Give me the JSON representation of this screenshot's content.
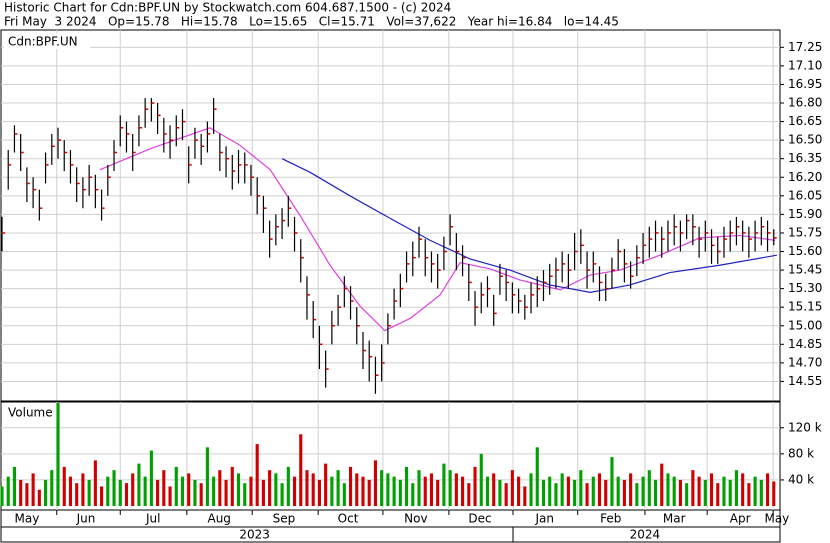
{
  "header": {
    "title": "Historic Chart for Cdn:BPF.UN by Stockwatch.com 604.687.1500 - (c) 2024",
    "summary": "Fri May  3 2024   Op=15.78   Hi=15.78   Lo=15.65   Cl=15.71   Vol=37,622   Year hi=16.84   lo=14.45"
  },
  "chart_data": {
    "type": "ohlc",
    "title": "Cdn:BPF.UN",
    "volume_title": "Volume",
    "xlim": [
      0,
      125
    ],
    "xticks": [
      {
        "value": 4.0,
        "label": "May"
      },
      {
        "value": 13.5,
        "label": "Jun"
      },
      {
        "value": 24.3,
        "label": "Jul"
      },
      {
        "value": 34.9,
        "label": "Aug"
      },
      {
        "value": 45.3,
        "label": "Sep"
      },
      {
        "value": 55.6,
        "label": "Oct"
      },
      {
        "value": 66.5,
        "label": "Nov"
      },
      {
        "value": 76.8,
        "label": "Dec"
      },
      {
        "value": 87.2,
        "label": "Jan"
      },
      {
        "value": 97.8,
        "label": "Feb"
      },
      {
        "value": 108.0,
        "label": "Mar"
      },
      {
        "value": 118.6,
        "label": "Apr"
      },
      {
        "value": 124.5,
        "label": "May"
      }
    ],
    "xgrid": [
      8.8,
      19.0,
      29.7,
      40.2,
      50.8,
      61.2,
      71.8,
      82.1,
      92.5,
      103.3,
      113.3,
      123.9
    ],
    "years": [
      {
        "value": 40.6,
        "label": "2023"
      },
      {
        "value": 103.3,
        "label": "2024"
      }
    ],
    "year_divider": 82.1,
    "ylim": [
      14.4,
      17.39
    ],
    "yticks": [
      17.25,
      {
        "value": 17.1,
        "label": "17.10"
      },
      16.95,
      {
        "value": 16.8,
        "label": "16.80"
      },
      16.65,
      {
        "value": 16.5,
        "label": "16.50"
      },
      16.35,
      {
        "value": 16.2,
        "label": "16.20"
      },
      16.05,
      {
        "value": 15.9,
        "label": "15.90"
      },
      15.75,
      {
        "value": 15.6,
        "label": "15.60"
      },
      15.45,
      {
        "value": 15.3,
        "label": "15.30"
      },
      15.15,
      {
        "value": 15.0,
        "label": "15.00"
      },
      14.85,
      {
        "value": 14.7,
        "label": "14.70"
      },
      14.55
    ],
    "high": [
      15.88,
      16.42,
      16.62,
      16.55,
      16.28,
      16.2,
      16.1,
      16.4,
      16.55,
      16.6,
      16.5,
      16.42,
      16.28,
      16.2,
      16.3,
      16.22,
      16.1,
      16.3,
      16.5,
      16.7,
      16.65,
      16.55,
      16.7,
      16.84,
      16.84,
      16.8,
      16.68,
      16.62,
      16.7,
      16.75,
      16.45,
      16.6,
      16.55,
      16.65,
      16.84,
      16.55,
      16.45,
      16.38,
      16.42,
      16.4,
      16.3,
      16.2,
      16.05,
      15.85,
      15.9,
      15.95,
      16.05,
      15.88,
      15.7,
      15.4,
      15.2,
      15.0,
      14.8,
      15.12,
      15.25,
      15.4,
      15.32,
      15.15,
      14.95,
      14.88,
      14.75,
      14.85,
      15.1,
      15.3,
      15.42,
      15.6,
      15.68,
      15.8,
      15.7,
      15.6,
      15.58,
      15.72,
      15.9,
      15.75,
      15.65,
      15.5,
      15.28,
      15.35,
      15.4,
      15.25,
      15.5,
      15.45,
      15.35,
      15.3,
      15.25,
      15.35,
      15.4,
      15.45,
      15.5,
      15.55,
      15.6,
      15.58,
      15.75,
      15.78,
      15.6,
      15.6,
      15.48,
      15.42,
      15.55,
      15.7,
      15.62,
      15.52,
      15.65,
      15.75,
      15.8,
      15.85,
      15.8,
      15.85,
      15.9,
      15.85,
      15.9,
      15.9,
      15.8,
      15.85,
      15.78,
      15.72,
      15.8,
      15.85,
      15.88,
      15.85,
      15.8,
      15.85,
      15.88,
      15.85,
      15.78
    ],
    "low": [
      15.6,
      16.1,
      16.4,
      16.25,
      16.0,
      15.95,
      15.85,
      16.15,
      16.3,
      16.35,
      16.25,
      16.15,
      16.0,
      15.95,
      16.05,
      15.95,
      15.85,
      16.05,
      16.25,
      16.45,
      16.4,
      16.25,
      16.45,
      16.6,
      16.65,
      16.55,
      16.4,
      16.35,
      16.45,
      16.5,
      16.15,
      16.35,
      16.3,
      16.4,
      16.55,
      16.25,
      16.2,
      16.1,
      16.15,
      16.15,
      16.05,
      15.9,
      15.75,
      15.55,
      15.65,
      15.7,
      15.8,
      15.6,
      15.35,
      15.05,
      14.9,
      14.65,
      14.5,
      14.85,
      15.0,
      15.15,
      15.05,
      14.85,
      14.65,
      14.55,
      14.45,
      14.55,
      14.85,
      15.05,
      15.15,
      15.35,
      15.4,
      15.55,
      15.4,
      15.35,
      15.3,
      15.45,
      15.65,
      15.45,
      15.4,
      15.2,
      15.0,
      15.1,
      15.15,
      15.0,
      15.25,
      15.2,
      15.1,
      15.1,
      15.05,
      15.1,
      15.15,
      15.2,
      15.25,
      15.3,
      15.35,
      15.3,
      15.45,
      15.5,
      15.3,
      15.35,
      15.2,
      15.2,
      15.3,
      15.45,
      15.35,
      15.3,
      15.4,
      15.5,
      15.55,
      15.6,
      15.55,
      15.6,
      15.65,
      15.6,
      15.7,
      15.65,
      15.55,
      15.6,
      15.5,
      15.5,
      15.55,
      15.6,
      15.65,
      15.6,
      15.55,
      15.6,
      15.65,
      15.6,
      15.65
    ],
    "close": [
      15.75,
      16.3,
      16.55,
      16.4,
      16.15,
      16.1,
      15.95,
      16.3,
      16.45,
      16.5,
      16.4,
      16.3,
      16.15,
      16.1,
      16.2,
      16.1,
      15.95,
      16.2,
      16.4,
      16.6,
      16.55,
      16.4,
      16.6,
      16.75,
      16.8,
      16.7,
      16.55,
      16.5,
      16.6,
      16.65,
      16.3,
      16.5,
      16.45,
      16.55,
      16.75,
      16.4,
      16.35,
      16.25,
      16.3,
      16.3,
      16.2,
      16.05,
      15.95,
      15.7,
      15.8,
      15.85,
      15.95,
      15.75,
      15.55,
      15.25,
      15.05,
      14.85,
      14.65,
      15.0,
      15.15,
      15.3,
      15.2,
      15.0,
      14.8,
      14.75,
      14.6,
      14.7,
      15.0,
      15.2,
      15.3,
      15.5,
      15.55,
      15.7,
      15.55,
      15.5,
      15.45,
      15.6,
      15.8,
      15.6,
      15.55,
      15.35,
      15.15,
      15.25,
      15.3,
      15.1,
      15.4,
      15.35,
      15.25,
      15.2,
      15.15,
      15.25,
      15.3,
      15.35,
      15.4,
      15.45,
      15.5,
      15.45,
      15.6,
      15.65,
      15.45,
      15.5,
      15.35,
      15.3,
      15.45,
      15.6,
      15.5,
      15.4,
      15.55,
      15.65,
      15.7,
      15.75,
      15.7,
      15.75,
      15.8,
      15.75,
      15.85,
      15.8,
      15.7,
      15.75,
      15.65,
      15.6,
      15.7,
      15.75,
      15.8,
      15.75,
      15.7,
      15.75,
      15.8,
      15.75,
      15.71
    ],
    "bar_color": "#000000",
    "close_color": "#cc0000",
    "averages": [
      {
        "color": "#e040e0",
        "x": [
          15.7,
          23.8,
          33.4,
          38.2,
          43.1,
          47.9,
          52.7,
          57.5,
          61.5,
          65.6,
          70.4,
          73.6,
          78.4,
          83.2,
          89.7,
          94.5,
          99.3,
          105.7,
          112.1,
          118.6,
          124.2
        ],
        "values": [
          16.26,
          16.43,
          16.6,
          16.46,
          16.26,
          15.89,
          15.49,
          15.16,
          14.96,
          15.06,
          15.25,
          15.51,
          15.46,
          15.37,
          15.29,
          15.41,
          15.45,
          15.57,
          15.71,
          15.73,
          15.69
        ]
      },
      {
        "color": "#2020c0",
        "x": [
          45.0,
          49.5,
          55.9,
          62.3,
          68.8,
          75.2,
          81.6,
          88.0,
          94.5,
          100.9,
          107.3,
          115.4,
          124.5
        ],
        "values": [
          16.35,
          16.24,
          16.05,
          15.87,
          15.69,
          15.54,
          15.45,
          15.33,
          15.27,
          15.33,
          15.43,
          15.49,
          15.57
        ]
      }
    ],
    "volume": [
      30000,
      45000,
      60000,
      40000,
      35000,
      50000,
      25000,
      40000,
      55000,
      158000,
      60000,
      45000,
      35000,
      50000,
      40000,
      70000,
      30000,
      45000,
      55000,
      40000,
      35000,
      50000,
      65000,
      45000,
      85000,
      40000,
      55000,
      30000,
      60000,
      45000,
      50000,
      40000,
      35000,
      90000,
      45000,
      55000,
      40000,
      60000,
      50000,
      35000,
      45000,
      95000,
      40000,
      55000,
      50000,
      35000,
      60000,
      45000,
      110000,
      55000,
      50000,
      40000,
      65000,
      45000,
      55000,
      35000,
      60000,
      50000,
      45000,
      40000,
      70000,
      55000,
      50000,
      45000,
      40000,
      60000,
      35000,
      55000,
      45000,
      50000,
      40000,
      65000,
      55000,
      50000,
      45000,
      35000,
      60000,
      80000,
      45000,
      50000,
      40000,
      35000,
      55000,
      45000,
      30000,
      50000,
      90000,
      40000,
      45000,
      35000,
      50000,
      45000,
      40000,
      55000,
      35000,
      45000,
      50000,
      40000,
      75000,
      45000,
      40000,
      50000,
      35000,
      45000,
      55000,
      40000,
      65000,
      50000,
      45000,
      40000,
      35000,
      55000,
      45000,
      40000,
      50000,
      35000,
      45000,
      40000,
      55000,
      50000,
      35000,
      45000,
      40000,
      50000,
      37622
    ],
    "volume_up_color": "#00a000",
    "volume_down_color": "#d00000",
    "vlim": [
      0,
      158000
    ],
    "vticks": [
      {
        "value": 40000,
        "label": "40 k"
      },
      {
        "value": 80000,
        "label": "80 k"
      },
      {
        "value": 120000,
        "label": "120 k"
      }
    ],
    "grid": true
  }
}
